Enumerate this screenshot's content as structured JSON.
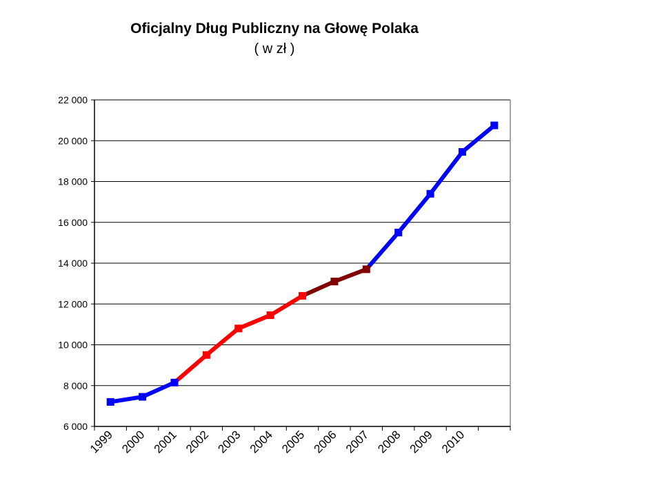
{
  "chart_data": {
    "type": "line",
    "title": "Oficjalny Dług Publiczny na Głowę Polaka",
    "subtitle": "( w zł )",
    "xlabel": "",
    "ylabel": "",
    "categories": [
      "1999",
      "2000",
      "2001",
      "2002",
      "2003",
      "2004",
      "2005",
      "2006",
      "2007",
      "2008",
      "2009",
      "2010",
      ""
    ],
    "values": [
      7200,
      7450,
      8150,
      9500,
      10800,
      11450,
      12400,
      13100,
      13700,
      15500,
      17400,
      19450,
      20750
    ],
    "point_colors": [
      "#0000FF",
      "#0000FF",
      "#0000FF",
      "#FF0000",
      "#FF0000",
      "#FF0000",
      "#FF0000",
      "#800000",
      "#800000",
      "#0000FF",
      "#0000FF",
      "#0000FF",
      "#0000FF"
    ],
    "segment_colors": [
      "#0000FF",
      "#0000FF",
      "#FF0000",
      "#FF0000",
      "#FF0000",
      "#FF0000",
      "#800000",
      "#800000",
      "#0000FF",
      "#0000FF",
      "#0000FF",
      "#0000FF"
    ],
    "ylim": [
      6000,
      22000
    ],
    "yticks": [
      6000,
      8000,
      10000,
      12000,
      14000,
      16000,
      18000,
      20000,
      22000
    ],
    "ytick_labels": [
      "6 000",
      "8 000",
      "10 000",
      "12 000",
      "14 000",
      "16 000",
      "18 000",
      "20 000",
      "22 000"
    ],
    "grid": true,
    "legend": "none",
    "marker": "square"
  }
}
